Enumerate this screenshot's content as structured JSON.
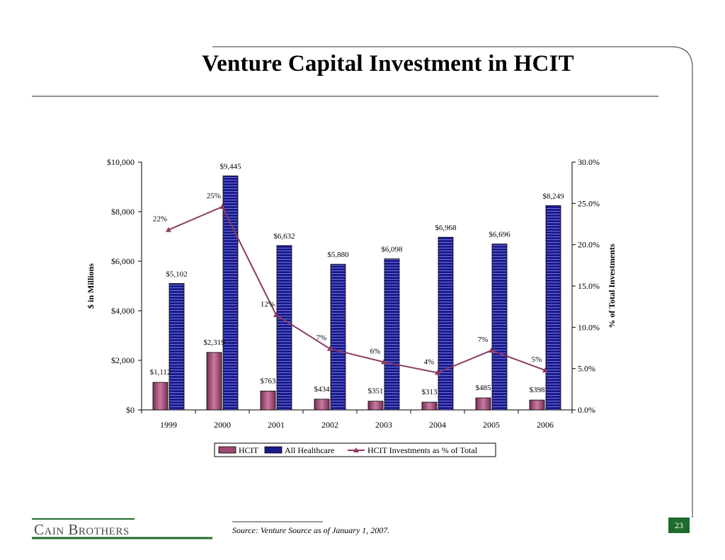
{
  "title": "Venture Capital Investment in HCIT",
  "colors": {
    "hcit": "#9b4a73",
    "all_healthcare": "#1a1a8c",
    "line": "#8b3a62",
    "brand_green": "#1e6b2d"
  },
  "chart_data": {
    "type": "bar",
    "categories": [
      "1999",
      "2000",
      "2001",
      "2002",
      "2003",
      "2004",
      "2005",
      "2006"
    ],
    "series": [
      {
        "name": "HCIT",
        "kind": "bar",
        "axis": "left",
        "values": [
          1112,
          2319,
          763,
          434,
          351,
          313,
          485,
          398
        ],
        "labels": [
          "$1,112",
          "$2,319",
          "$763",
          "$434",
          "$351",
          "$313",
          "$485",
          "$398"
        ]
      },
      {
        "name": "All Healthcare",
        "kind": "bar",
        "axis": "left",
        "values": [
          5102,
          9445,
          6632,
          5880,
          6098,
          6968,
          6696,
          8249
        ],
        "labels": [
          "$5,102",
          "$9,445",
          "$6,632",
          "$5,880",
          "$6,098",
          "$6,968",
          "$6,696",
          "$8,249"
        ]
      },
      {
        "name": "HCIT Investments as % of Total",
        "kind": "line",
        "axis": "right",
        "values": [
          21.8,
          24.6,
          11.5,
          7.4,
          5.8,
          4.5,
          7.2,
          4.8
        ],
        "labels": [
          "22%",
          "25%",
          "12%",
          "7%",
          "6%",
          "4%",
          "7%",
          "5%"
        ]
      }
    ],
    "ylabel": "$ in Millions",
    "y2label": "% of Total Investments",
    "ylim": [
      0,
      10000
    ],
    "y2lim": [
      0,
      30
    ],
    "yticks": [
      "$0",
      "$2,000",
      "$4,000",
      "$6,000",
      "$8,000",
      "$10,000"
    ],
    "y2ticks": [
      "0.0%",
      "5.0%",
      "10.0%",
      "15.0%",
      "20.0%",
      "25.0%",
      "30.0%"
    ],
    "legend": "bottom"
  },
  "footer": {
    "logo": "Cain Brothers",
    "source": "Source: Venture Source as of January 1, 2007.",
    "page_number": "23"
  }
}
